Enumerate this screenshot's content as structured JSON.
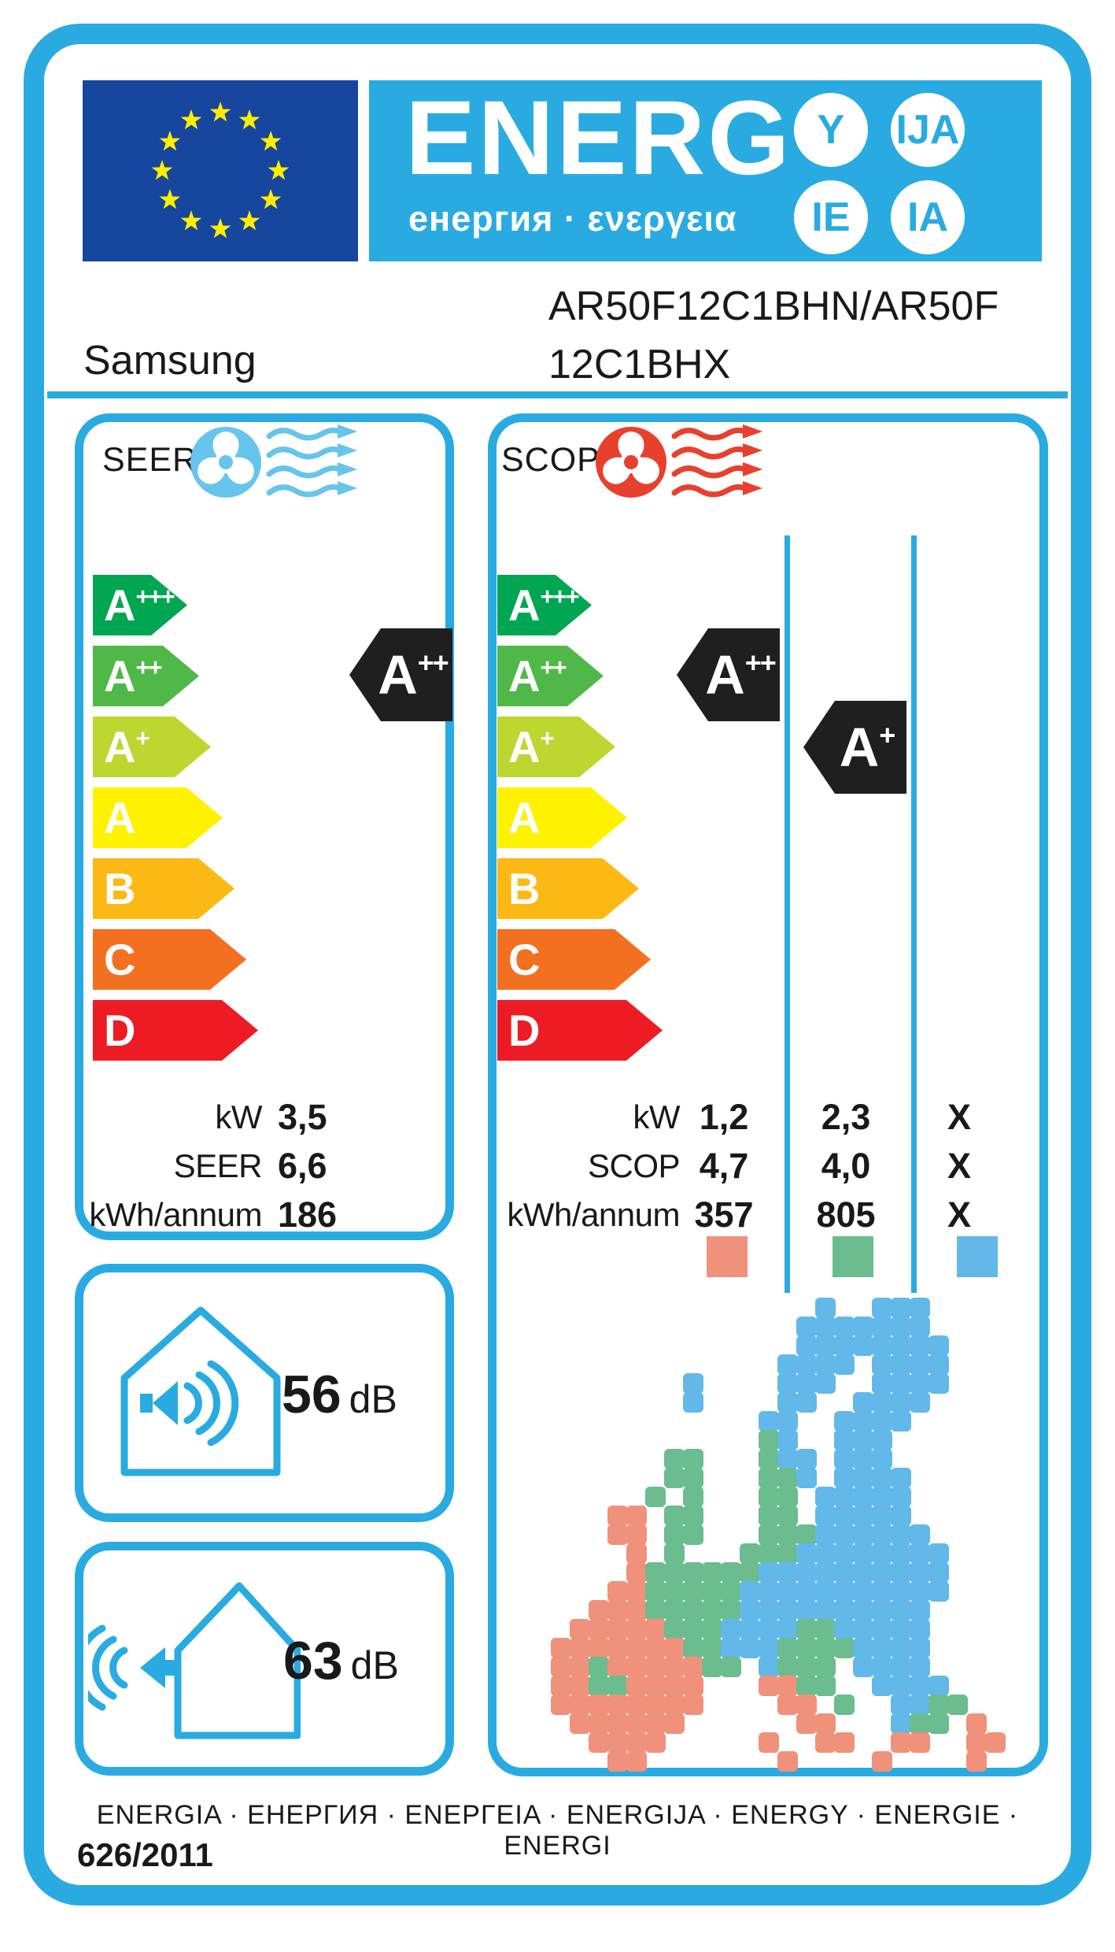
{
  "colors": {
    "accent": "#29ABE2",
    "flag_blue": "#17469E",
    "star_yellow": "#FFED00",
    "badge_black": "#1F1F1F",
    "fan_cool": "#66C4ED",
    "fan_heat": "#E8402C",
    "text": "#191919"
  },
  "header": {
    "energ": "ENERG",
    "sub": "енергия · ενεργεια",
    "badges": [
      "Y",
      "IJA",
      "IE",
      "IA"
    ]
  },
  "brand": {
    "name": "Samsung",
    "model_line1": "AR50F12C1BHN/AR50F",
    "model_line2": "12C1BHX"
  },
  "scale": [
    {
      "base": "A",
      "sup": "+++",
      "color": "#00A651"
    },
    {
      "base": "A",
      "sup": "++",
      "color": "#50B848"
    },
    {
      "base": "A",
      "sup": "+",
      "color": "#BED630"
    },
    {
      "base": "A",
      "sup": "",
      "color": "#FFF200"
    },
    {
      "base": "B",
      "sup": "",
      "color": "#FDB913"
    },
    {
      "base": "C",
      "sup": "",
      "color": "#F37021"
    },
    {
      "base": "D",
      "sup": "",
      "color": "#ED1C24"
    }
  ],
  "seer": {
    "label": "SEER",
    "rating": {
      "base": "A",
      "sup": "++"
    },
    "rows": [
      {
        "label": "kW",
        "value": "3,5"
      },
      {
        "label": "SEER",
        "value": "6,6"
      },
      {
        "label": "kWh/annum",
        "value": "186"
      }
    ]
  },
  "scop": {
    "label": "SCOP",
    "ratings": [
      {
        "base": "A",
        "sup": "++"
      },
      {
        "base": "A",
        "sup": "+"
      }
    ],
    "rows": [
      {
        "label": "kW",
        "values": [
          "1,2",
          "2,3",
          "X"
        ]
      },
      {
        "label": "SCOP",
        "values": [
          "4,7",
          "4,0",
          "X"
        ]
      },
      {
        "label": "kWh/annum",
        "values": [
          "357",
          "805",
          "X"
        ]
      }
    ],
    "legend_colors": [
      "#F0917B",
      "#6BBC8F",
      "#62B8E8"
    ]
  },
  "noise": {
    "indoor": {
      "value": "56",
      "unit": "dB"
    },
    "outdoor": {
      "value": "63",
      "unit": "dB"
    }
  },
  "climate_map": {
    "zone_colors": {
      "S": "#F0917B",
      "G": "#6BBC8F",
      "B": "#62B8E8"
    },
    "grid": [
      "...............B..BBB.....",
      "..............BBBBBBB.....",
      "..............BBBBBBBB....",
      ".............BBBB.BBBB....",
      "........B....BBB..BBBB....",
      "........B....BB..BBBB.....",
      "............BB..BBBB......",
      "............GB..BBB.......",
      ".......GG...GBB.BBB.......",
      ".......GG...GGB.BBBB......",
      "......G.G...GG.BBBBB......",
      "....SS.GG...GG.BBBBB......",
      "....SS.GG...GGGBBBBBB.....",
      ".....S.G...GGGBBBBBBBB....",
      ".....SGGGGGGBBBBBBBBBB....",
      "....SSGGGGGBBBBBBBBBBB....",
      "...SSSGGGGGBBBBBBBBBB.....",
      "..SSSSSGGGBBBBGGBBBBB.....",
      ".SSSSSSSGGBBBGGGGBBBB.....",
      ".SSGSSSSSGG.BGGG.BBBB.....",
      ".SSGGSSSS...SSGG..BBBB....",
      ".SSSSSSSS....SS.G..BBGG...",
      "..SSSSSS......SS...BGG.S..",
      "...SSSS.....S..SS..SS..SS.",
      "....SS.......S....S....S.."
    ]
  },
  "footer": {
    "languages": "ENERGIA · ЕНЕРГИЯ · ΕΝΕΡΓΕΙΑ · ENERGIJA · ENERGY · ENERGIE · ENERGI",
    "regulation": "626/2011"
  }
}
